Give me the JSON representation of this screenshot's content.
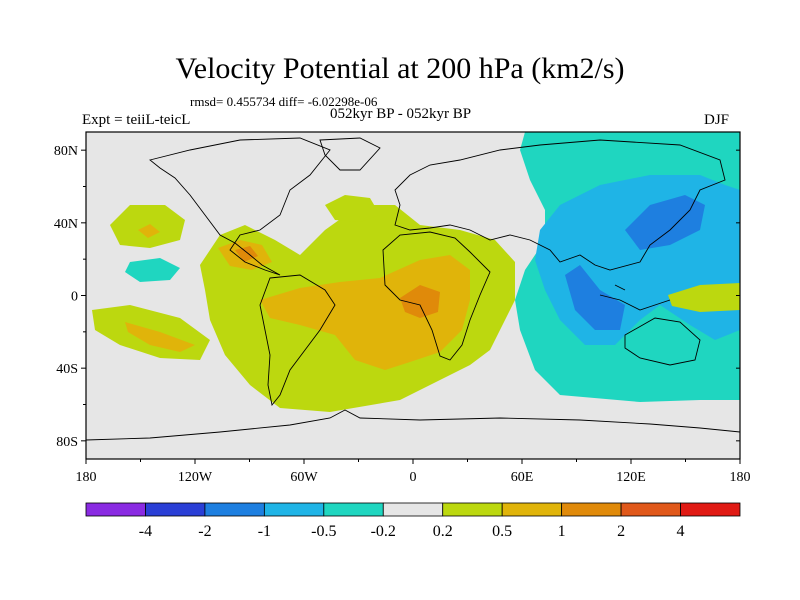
{
  "title": "Velocity Potential at 200 hPa (km2/s)",
  "stats": "rmsd= 0.455734 diff= -6.02298e-06",
  "left_label": "Expt = teiiL-teicL",
  "center_label": "052kyr BP - 052kyr BP",
  "right_label": "DJF",
  "lat_labels": [
    "80N",
    "40N",
    "0",
    "40S",
    "80S"
  ],
  "lat_values": [
    80,
    40,
    0,
    -40,
    -80
  ],
  "lon_labels": [
    "180",
    "120W",
    "60W",
    "0",
    "60E",
    "120E",
    "180"
  ],
  "lon_values": [
    -180,
    -120,
    -60,
    0,
    60,
    120,
    180
  ],
  "colorbar": {
    "labels": [
      "-4",
      "-2",
      "-1",
      "-0.5",
      "-0.2",
      "0.2",
      "0.5",
      "1",
      "2",
      "4"
    ],
    "colors": [
      "#8a2be2",
      "#2a3fd6",
      "#1e7fe0",
      "#1fb4e6",
      "#1fd6c0",
      "#e6e6e6",
      "#bcd80f",
      "#e0b40a",
      "#e08a0a",
      "#e0581a",
      "#e01a14"
    ]
  },
  "colors": {
    "neutral": "#e6e6e6",
    "pos1": "#bcd80f",
    "pos2": "#e0b40a",
    "pos3": "#e08a0a",
    "neg1": "#1fd6c0",
    "neg2": "#1fb4e6",
    "neg3": "#1e7fe0"
  }
}
